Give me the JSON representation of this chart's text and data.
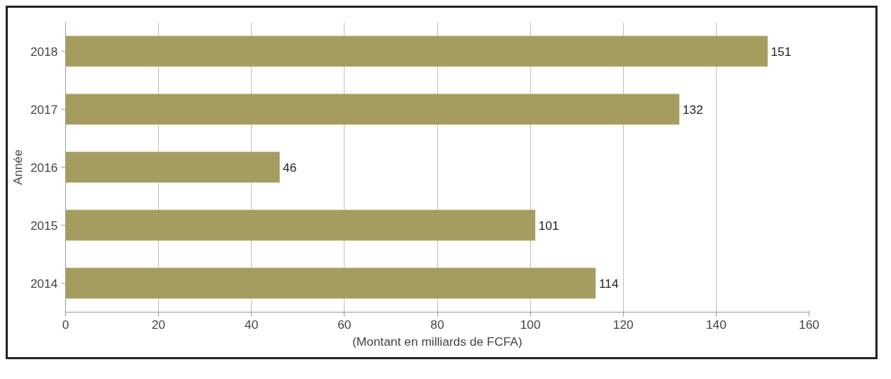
{
  "chart_data": {
    "type": "bar",
    "orientation": "horizontal",
    "ylabel": "Année",
    "xlabel": "(Montant en milliards de FCFA)",
    "categories": [
      "2018",
      "2017",
      "2016",
      "2015",
      "2014"
    ],
    "values": [
      151,
      132,
      46,
      101,
      114
    ],
    "color": "#a59d5f",
    "xlim": [
      0,
      160
    ],
    "xticks": [
      0,
      20,
      40,
      60,
      80,
      100,
      120,
      140,
      160
    ],
    "grid": "x",
    "data_labels": true
  }
}
